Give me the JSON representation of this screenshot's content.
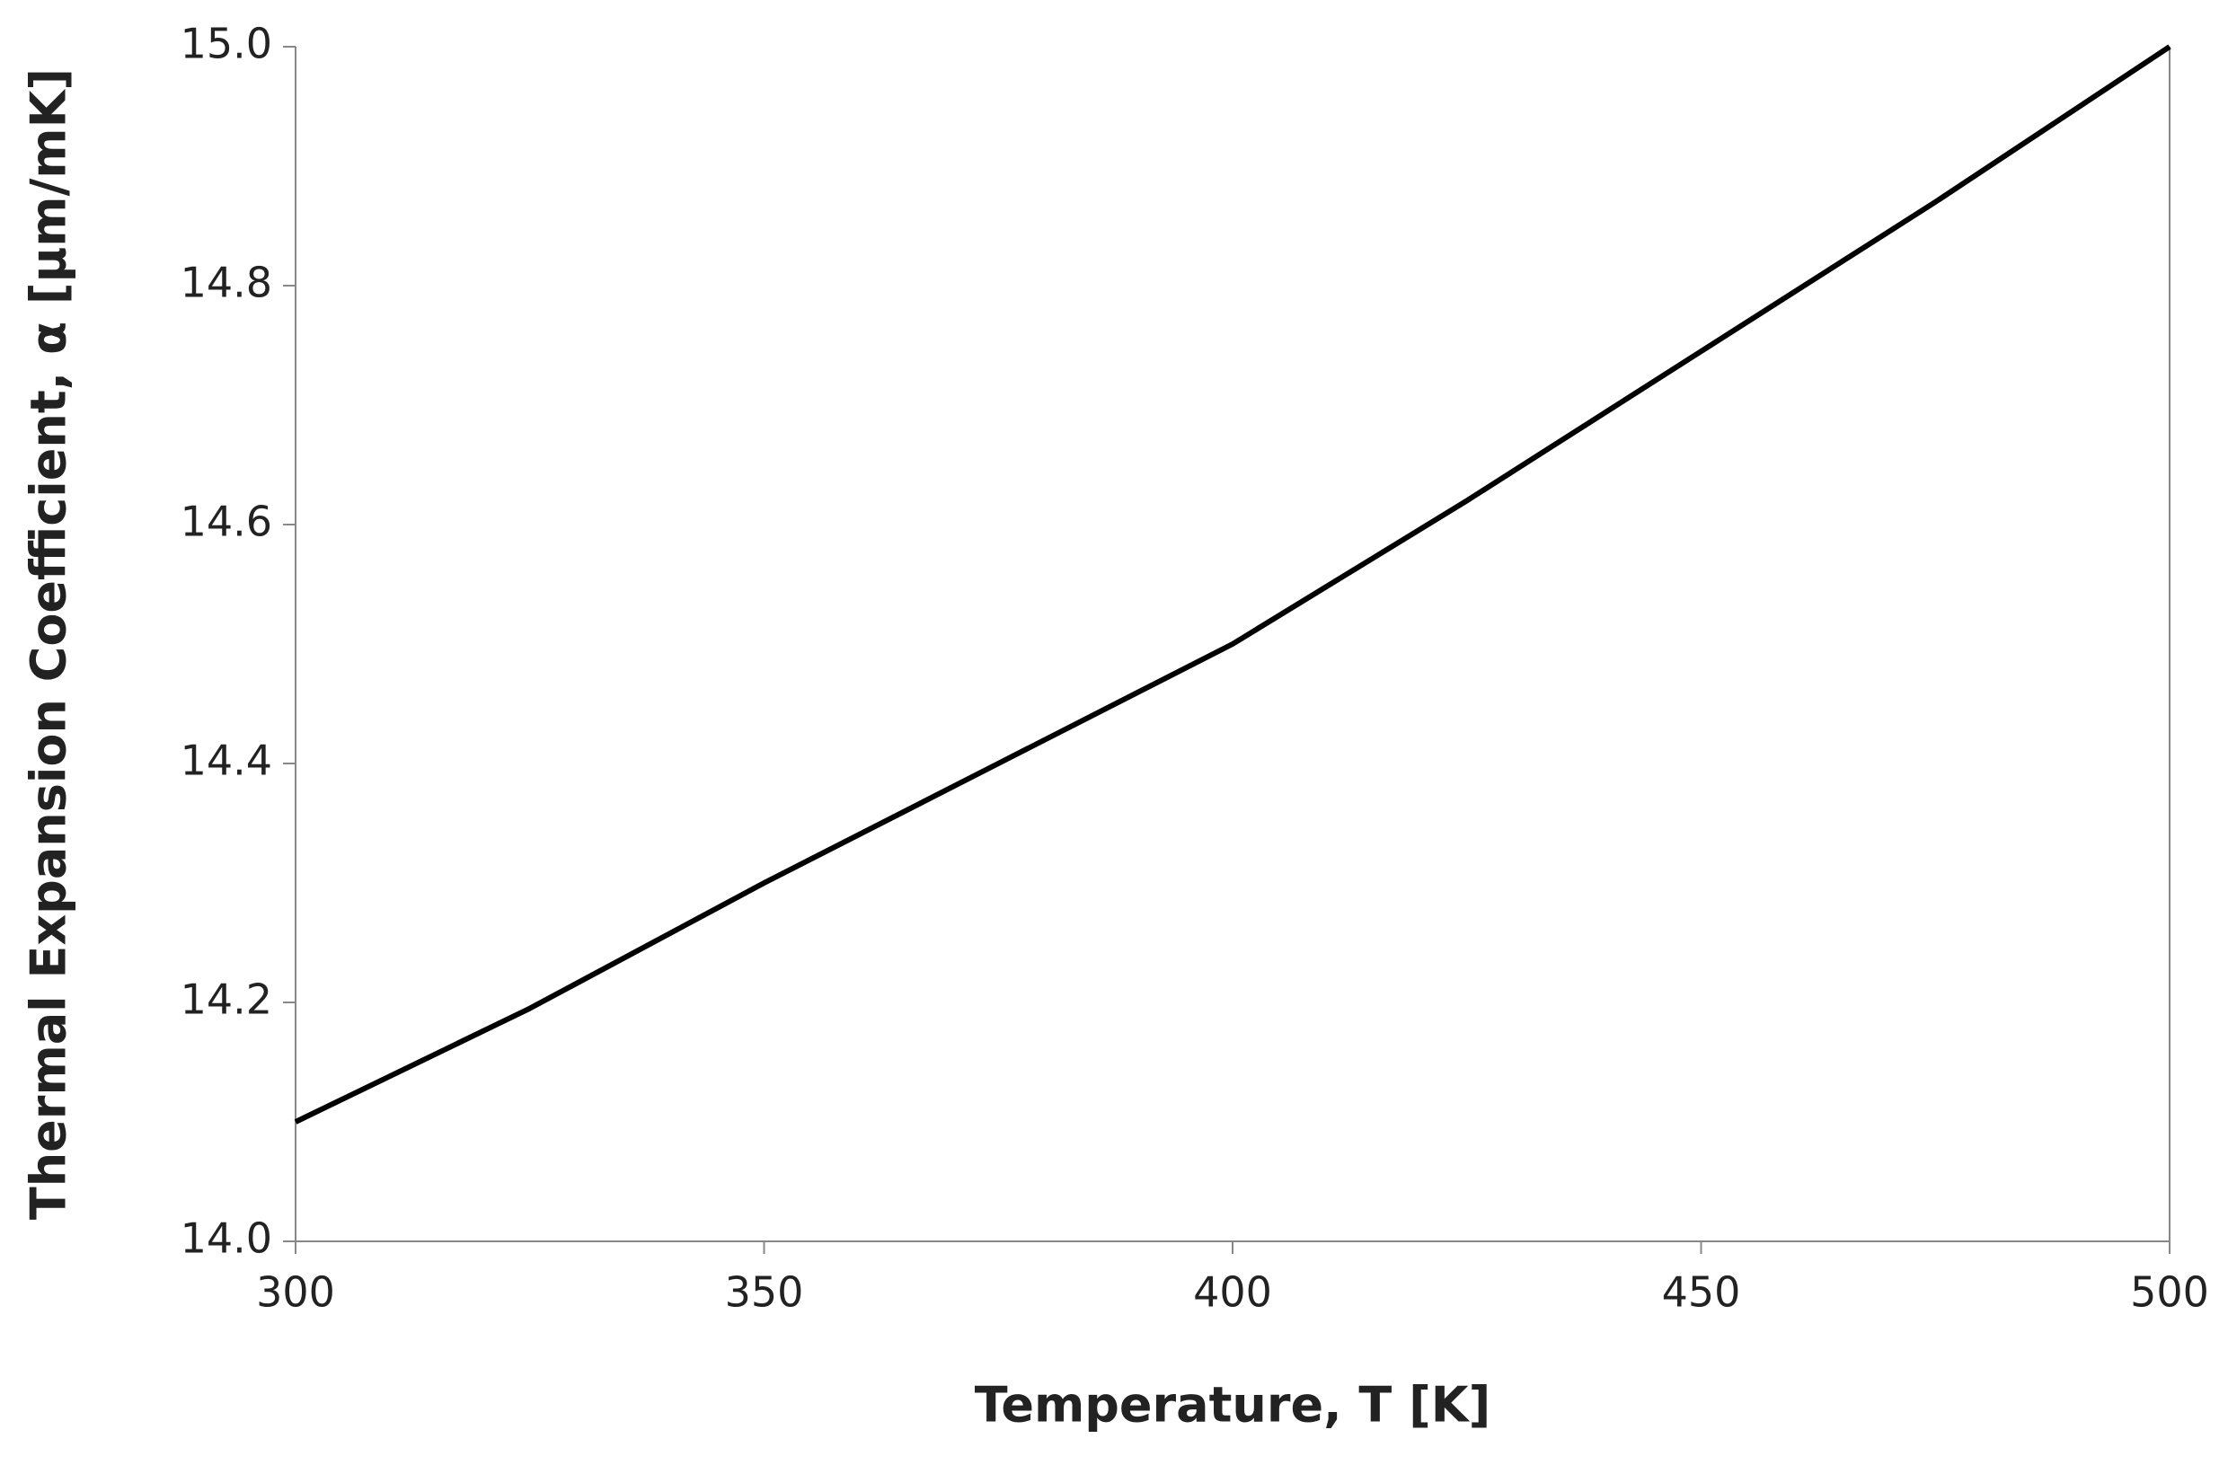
{
  "chart_data": {
    "type": "line",
    "x_label": "Temperature,  T [K]",
    "y_label": "Thermal Expansion Coefficient, α [μm/mK]",
    "x": [
      300,
      325,
      350,
      375,
      400,
      425,
      450,
      475,
      500
    ],
    "series": [
      {
        "name": "α",
        "color": "#000000",
        "values": [
          14.1,
          14.195,
          14.3,
          14.4,
          14.5,
          14.62,
          14.745,
          14.87,
          15.0
        ]
      }
    ],
    "xlim": [
      300,
      500
    ],
    "xticks": [
      300,
      350,
      400,
      450,
      500
    ],
    "ylim": [
      14.0,
      15.0
    ],
    "yticks": [
      {
        "value": 14.0,
        "label": "14.0"
      },
      14.2,
      14.4,
      14.6,
      14.8,
      {
        "value": 15.0,
        "label": "15.0"
      }
    ],
    "grid": false
  }
}
